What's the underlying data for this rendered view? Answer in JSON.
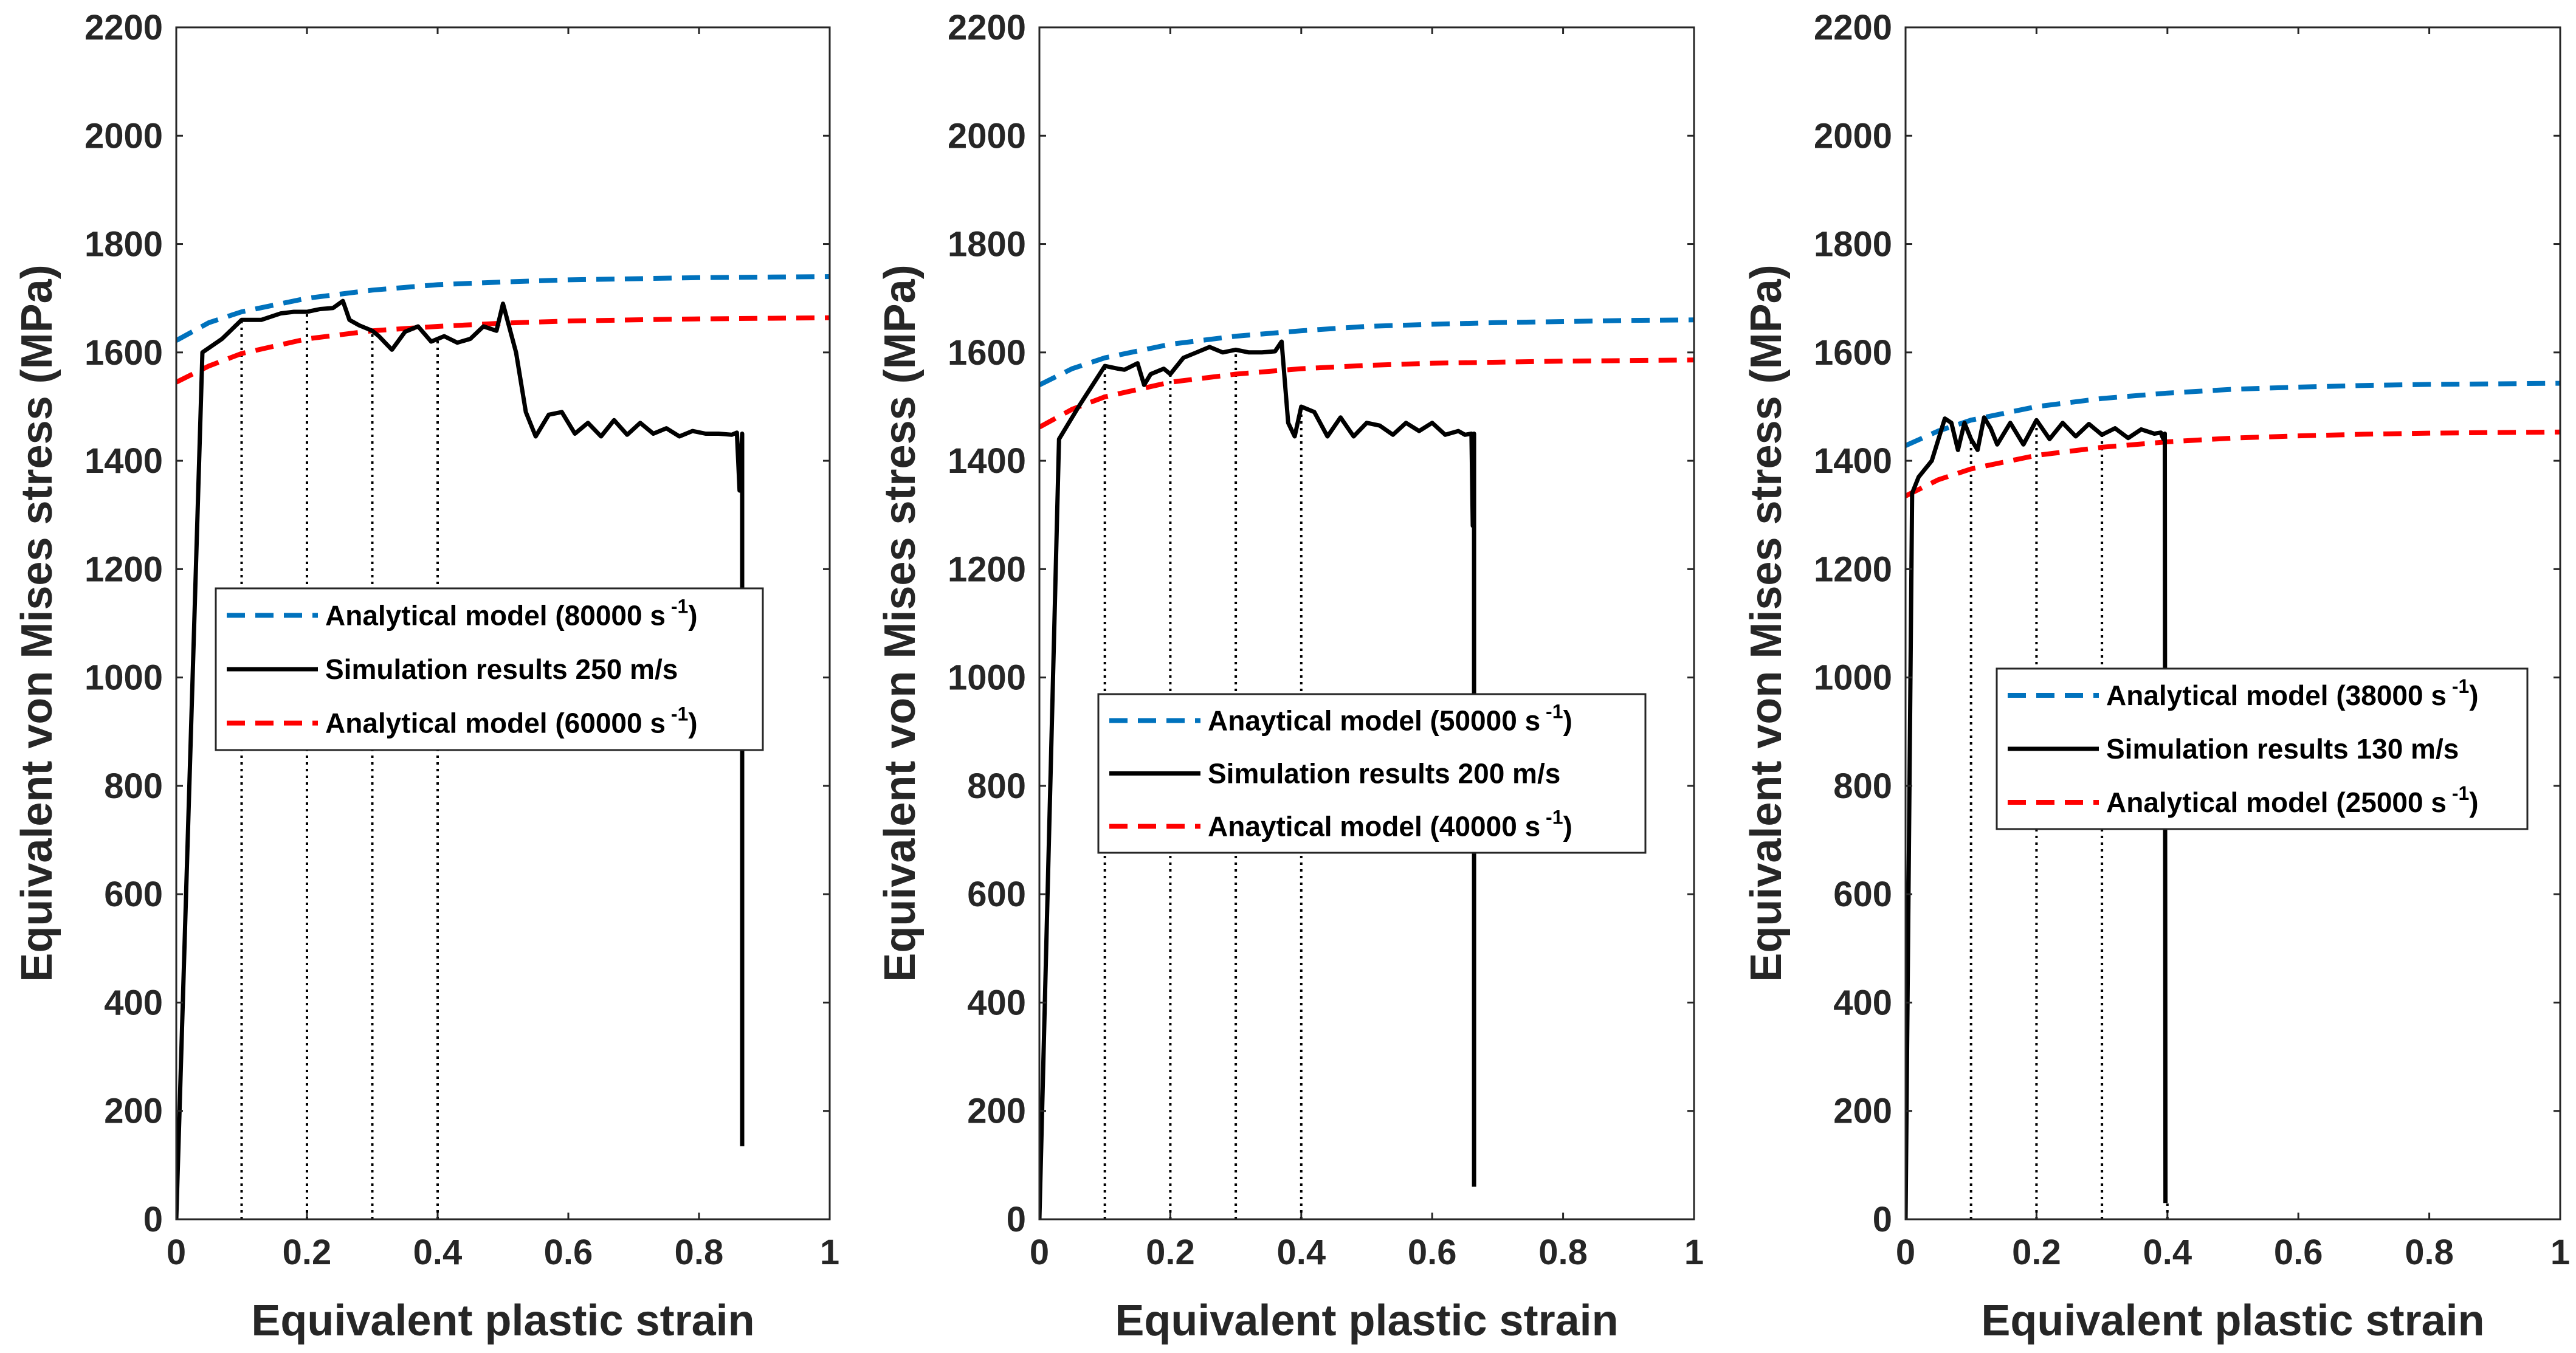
{
  "chart_data": [
    {
      "type": "line",
      "xlabel": "Equivalent plastic strain",
      "ylabel": "Equivalent von Mises stress (MPa)",
      "xlim": [
        0,
        1
      ],
      "ylim": [
        0,
        2200
      ],
      "xticks": [
        0,
        0.2,
        0.4,
        0.6,
        0.8,
        1
      ],
      "xtick_labels": [
        "0",
        "0.2",
        "0.4",
        "0.6",
        "0.8",
        "1"
      ],
      "yticks": [
        0,
        200,
        400,
        600,
        800,
        1000,
        1200,
        1400,
        1600,
        1800,
        2000,
        2200
      ],
      "ytick_labels": [
        "0",
        "200",
        "400",
        "600",
        "800",
        "1000",
        "1200",
        "1400",
        "1600",
        "1800",
        "2000",
        "2200"
      ],
      "legend": [
        {
          "prefix": "Analytical model (80000 s",
          "sup": "-1",
          "suffix": ")",
          "series": "upper"
        },
        {
          "prefix": "Simulation results 250 m/s",
          "sup": "",
          "suffix": "",
          "series": "sim"
        },
        {
          "prefix": "Analytical model (60000 s",
          "sup": "-1",
          "suffix": ")",
          "series": "lower"
        }
      ],
      "legend_position": "center-left",
      "guides": [
        0.1,
        0.2,
        0.3,
        0.4
      ],
      "series": [
        {
          "name": "Analytical model (80000 s-1)",
          "style": "dashed",
          "color": "#0072BD",
          "x": [
            0,
            0.05,
            0.1,
            0.2,
            0.3,
            0.4,
            0.5,
            0.6,
            0.7,
            0.8,
            0.9,
            1.0
          ],
          "y": [
            1622,
            1655,
            1675,
            1700,
            1715,
            1725,
            1730,
            1734,
            1736,
            1738,
            1739,
            1740
          ]
        },
        {
          "name": "Analytical model (60000 s-1)",
          "style": "dashed",
          "color": "#FF0000",
          "x": [
            0,
            0.05,
            0.1,
            0.2,
            0.3,
            0.4,
            0.5,
            0.6,
            0.7,
            0.8,
            0.9,
            1.0
          ],
          "y": [
            1545,
            1575,
            1598,
            1625,
            1640,
            1648,
            1654,
            1658,
            1660,
            1662,
            1663,
            1664
          ]
        },
        {
          "name": "Simulation results 250 m/s",
          "style": "solid",
          "color": "#000000",
          "x": [
            0,
            0.04,
            0.07,
            0.1,
            0.13,
            0.16,
            0.18,
            0.2,
            0.22,
            0.24,
            0.255,
            0.265,
            0.28,
            0.3,
            0.31,
            0.33,
            0.35,
            0.37,
            0.39,
            0.41,
            0.43,
            0.45,
            0.47,
            0.49,
            0.5,
            0.52,
            0.535,
            0.55,
            0.57,
            0.59,
            0.61,
            0.63,
            0.65,
            0.67,
            0.69,
            0.71,
            0.73,
            0.75,
            0.77,
            0.79,
            0.81,
            0.83,
            0.85,
            0.858,
            0.862,
            0.866,
            0.866
          ],
          "y": [
            0,
            1600,
            1625,
            1660,
            1660,
            1672,
            1675,
            1675,
            1680,
            1682,
            1695,
            1660,
            1650,
            1640,
            1630,
            1605,
            1638,
            1648,
            1620,
            1630,
            1618,
            1625,
            1648,
            1640,
            1690,
            1600,
            1490,
            1445,
            1485,
            1490,
            1450,
            1470,
            1445,
            1475,
            1448,
            1470,
            1450,
            1460,
            1445,
            1455,
            1450,
            1450,
            1448,
            1452,
            1345,
            1450,
            135
          ]
        }
      ]
    },
    {
      "type": "line",
      "xlabel": "Equivalent plastic strain",
      "ylabel": "Equivalent von Mises stress (MPa)",
      "xlim": [
        0,
        1
      ],
      "ylim": [
        0,
        2200
      ],
      "xticks": [
        0,
        0.2,
        0.4,
        0.6,
        0.8,
        1
      ],
      "xtick_labels": [
        "0",
        "0.2",
        "0.4",
        "0.6",
        "0.8",
        "1"
      ],
      "yticks": [
        0,
        200,
        400,
        600,
        800,
        1000,
        1200,
        1400,
        1600,
        1800,
        2000,
        2200
      ],
      "ytick_labels": [
        "0",
        "200",
        "400",
        "600",
        "800",
        "1000",
        "1200",
        "1400",
        "1600",
        "1800",
        "2000",
        "2200"
      ],
      "legend": [
        {
          "prefix": "Anaytical model (50000 s",
          "sup": "-1",
          "suffix": ")",
          "series": "upper"
        },
        {
          "prefix": "Simulation results 200 m/s",
          "sup": "",
          "suffix": "",
          "series": "sim"
        },
        {
          "prefix": "Anaytical model (40000 s",
          "sup": "-1",
          "suffix": ")",
          "series": "lower"
        }
      ],
      "legend_position": "center",
      "guides": [
        0.1,
        0.2,
        0.3,
        0.4
      ],
      "series": [
        {
          "name": "Anaytical model (50000 s-1)",
          "style": "dashed",
          "color": "#0072BD",
          "x": [
            0,
            0.05,
            0.1,
            0.2,
            0.3,
            0.4,
            0.5,
            0.6,
            0.7,
            0.8,
            0.9,
            1.0
          ],
          "y": [
            1540,
            1570,
            1590,
            1615,
            1630,
            1640,
            1648,
            1652,
            1655,
            1657,
            1659,
            1660
          ]
        },
        {
          "name": "Anaytical model (40000 s-1)",
          "style": "dashed",
          "color": "#FF0000",
          "x": [
            0,
            0.05,
            0.1,
            0.2,
            0.3,
            0.4,
            0.5,
            0.6,
            0.7,
            0.8,
            0.9,
            1.0
          ],
          "y": [
            1462,
            1495,
            1518,
            1545,
            1560,
            1570,
            1576,
            1580,
            1582,
            1584,
            1585,
            1586
          ]
        },
        {
          "name": "Simulation results 200 m/s",
          "style": "solid",
          "color": "#000000",
          "x": [
            0,
            0.03,
            0.06,
            0.1,
            0.12,
            0.13,
            0.15,
            0.16,
            0.17,
            0.19,
            0.2,
            0.22,
            0.24,
            0.26,
            0.28,
            0.3,
            0.32,
            0.34,
            0.36,
            0.37,
            0.38,
            0.39,
            0.4,
            0.42,
            0.44,
            0.46,
            0.48,
            0.5,
            0.52,
            0.54,
            0.56,
            0.58,
            0.6,
            0.62,
            0.64,
            0.65,
            0.66,
            0.662,
            0.664,
            0.664
          ],
          "y": [
            0,
            1440,
            1500,
            1575,
            1570,
            1568,
            1580,
            1540,
            1560,
            1570,
            1560,
            1590,
            1600,
            1610,
            1600,
            1605,
            1600,
            1600,
            1602,
            1620,
            1470,
            1445,
            1500,
            1490,
            1445,
            1480,
            1445,
            1470,
            1465,
            1448,
            1470,
            1455,
            1470,
            1448,
            1455,
            1448,
            1450,
            1280,
            1450,
            60
          ]
        }
      ]
    },
    {
      "type": "line",
      "xlabel": "Equivalent plastic strain",
      "ylabel": "Equivalent von Mises stress (MPa)",
      "xlim": [
        0,
        1
      ],
      "ylim": [
        0,
        2200
      ],
      "xticks": [
        0,
        0.2,
        0.4,
        0.6,
        0.8,
        1
      ],
      "xtick_labels": [
        "0",
        "0.2",
        "0.4",
        "0.6",
        "0.8",
        "1"
      ],
      "yticks": [
        0,
        200,
        400,
        600,
        800,
        1000,
        1200,
        1400,
        1600,
        1800,
        2000,
        2200
      ],
      "ytick_labels": [
        "0",
        "200",
        "400",
        "600",
        "800",
        "1000",
        "1200",
        "1400",
        "1600",
        "1800",
        "2000",
        "2200"
      ],
      "legend": [
        {
          "prefix": "Analytical model (38000 s",
          "sup": "-1",
          "suffix": ")",
          "series": "upper"
        },
        {
          "prefix": "Simulation results 130 m/s",
          "sup": "",
          "suffix": "",
          "series": "sim"
        },
        {
          "prefix": "Analytical model (25000 s",
          "sup": "-1",
          "suffix": ")",
          "series": "lower"
        }
      ],
      "legend_position": "center-right",
      "guides": [
        0.1,
        0.2,
        0.3,
        0.4
      ],
      "series": [
        {
          "name": "Analytical model (38000 s-1)",
          "style": "dashed",
          "color": "#0072BD",
          "x": [
            0,
            0.05,
            0.1,
            0.2,
            0.3,
            0.4,
            0.5,
            0.6,
            0.7,
            0.8,
            0.9,
            1.0
          ],
          "y": [
            1428,
            1455,
            1475,
            1500,
            1515,
            1525,
            1532,
            1536,
            1539,
            1541,
            1542,
            1543
          ]
        },
        {
          "name": "Analytical model (25000 s-1)",
          "style": "dashed",
          "color": "#FF0000",
          "x": [
            0,
            0.05,
            0.1,
            0.2,
            0.3,
            0.4,
            0.5,
            0.6,
            0.7,
            0.8,
            0.9,
            1.0
          ],
          "y": [
            1335,
            1365,
            1385,
            1410,
            1425,
            1435,
            1442,
            1446,
            1449,
            1451,
            1452,
            1453
          ]
        },
        {
          "name": "Simulation results 130 m/s",
          "style": "solid",
          "color": "#000000",
          "x": [
            0,
            0.01,
            0.02,
            0.04,
            0.06,
            0.07,
            0.08,
            0.09,
            0.1,
            0.11,
            0.12,
            0.13,
            0.14,
            0.16,
            0.18,
            0.2,
            0.22,
            0.24,
            0.26,
            0.28,
            0.3,
            0.32,
            0.34,
            0.36,
            0.38,
            0.39,
            0.392,
            0.394,
            0.396,
            0.397
          ],
          "y": [
            0,
            1340,
            1370,
            1400,
            1478,
            1470,
            1420,
            1470,
            1440,
            1420,
            1480,
            1460,
            1430,
            1470,
            1430,
            1475,
            1440,
            1470,
            1445,
            1468,
            1448,
            1460,
            1442,
            1458,
            1450,
            1452,
            1445,
            1440,
            1450,
            30
          ]
        }
      ]
    }
  ]
}
